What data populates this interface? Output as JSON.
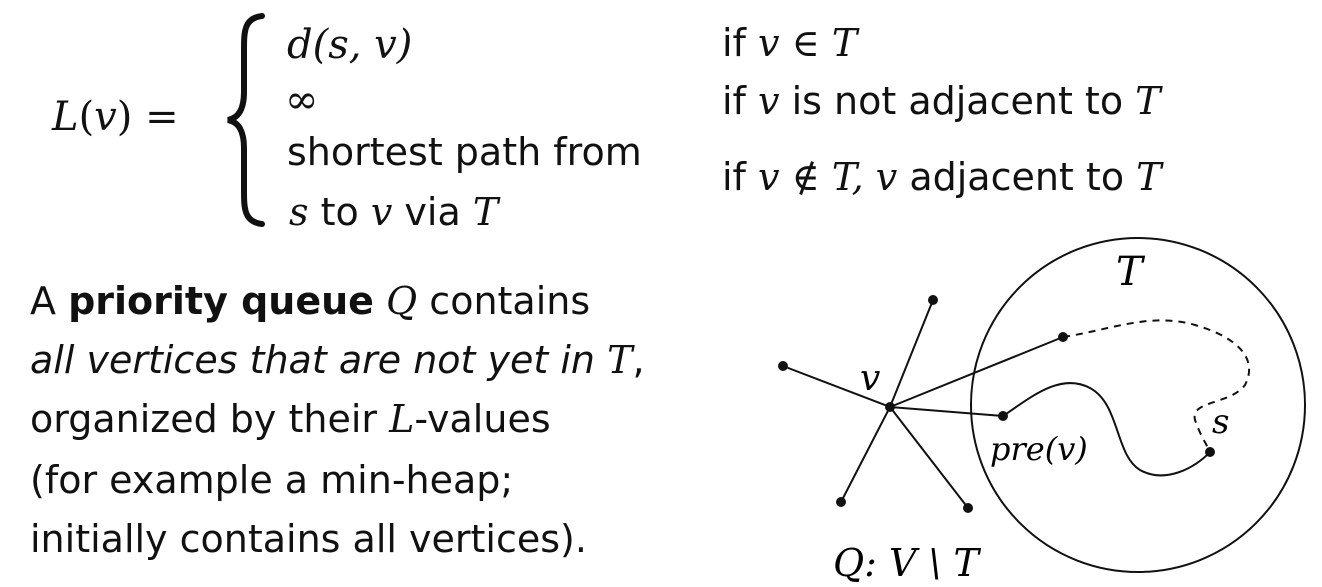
{
  "formula": {
    "lhs_fn": "L",
    "lhs_var": "v",
    "equals": "=",
    "case1_value": "d(s, v)",
    "case1_cond_if": "if",
    "case1_cond_var": "v",
    "case1_cond_rel": "∈",
    "case1_cond_set": "T",
    "case2_value": "∞",
    "case2_cond_if": "if",
    "case2_cond_var": "v",
    "case2_cond_text": "is not adjacent to",
    "case2_cond_set": "T",
    "case3_value_line1": "shortest path from",
    "case3_value_var_s": "s",
    "case3_value_to": "to",
    "case3_value_var_v": "v",
    "case3_value_via": "via",
    "case3_value_set": "T",
    "case3_cond_if": "if",
    "case3_cond_var": "v",
    "case3_cond_rel": "∉",
    "case3_cond_set": "T,",
    "case3_cond_var2": "v",
    "case3_cond_text": "adjacent to",
    "case3_cond_set2": "T"
  },
  "paragraph": {
    "l1_a": "A",
    "l1_bold": "priority queue",
    "l1_var": "Q",
    "l1_b": "contains",
    "l2_italic": "all vertices that are not yet in",
    "l2_var": "T",
    "l2_end": ",",
    "l3_a": "organized by their",
    "l3_var": "L",
    "l3_b": "-values",
    "l4": "(for example a min-heap;",
    "l5": "initially contains all vertices)."
  },
  "diagram": {
    "set_label": "T",
    "vertex_label": "v",
    "pred_label": "pre(v)",
    "source_label": "s",
    "queue_label": "Q: V \\ T"
  }
}
